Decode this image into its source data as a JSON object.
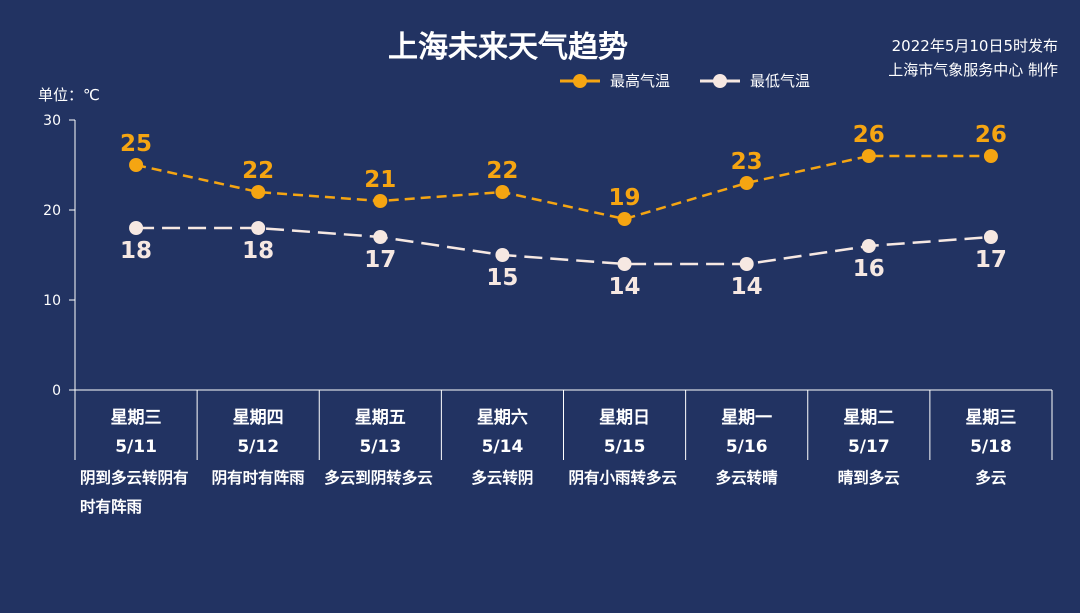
{
  "title": "上海未来天气趋势",
  "issued": {
    "line1": "2022年5月10日5时发布",
    "line2": "上海市气象服务中心 制作"
  },
  "unit_label": "单位：℃",
  "legend": {
    "high": "最高气温",
    "low": "最低气温"
  },
  "colors": {
    "background": "#223362",
    "high": "#f5a512",
    "low": "#f6e8e2",
    "axis": "#ffffff"
  },
  "chart_data": {
    "type": "line",
    "title": "上海未来天气趋势",
    "ylabel": "单位：℃",
    "ylim": [
      0,
      30
    ],
    "yticks": [
      0,
      10,
      20,
      30
    ],
    "legend_position": "top-right",
    "categories": [
      "星期三",
      "星期四",
      "星期五",
      "星期六",
      "星期日",
      "星期一",
      "星期二",
      "星期三"
    ],
    "dates": [
      "5/11",
      "5/12",
      "5/13",
      "5/14",
      "5/15",
      "5/16",
      "5/17",
      "5/18"
    ],
    "weather": [
      "阴到多云转阴有时有阵雨",
      "阴有时有阵雨",
      "多云到阴转多云",
      "多云转阴",
      "阴有小雨转多云",
      "多云转晴",
      "晴到多云",
      "多云"
    ],
    "series": [
      {
        "name": "最高气温",
        "values": [
          25,
          22,
          21,
          22,
          19,
          23,
          26,
          26
        ]
      },
      {
        "name": "最低气温",
        "values": [
          18,
          18,
          17,
          15,
          14,
          14,
          16,
          17
        ]
      }
    ]
  }
}
